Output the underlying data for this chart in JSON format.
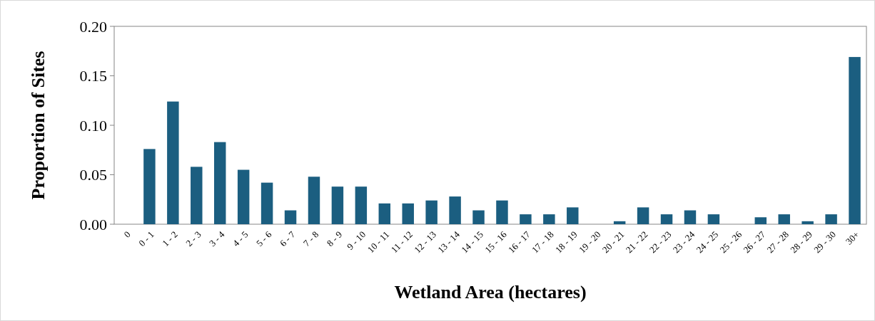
{
  "chart_data": {
    "type": "bar",
    "xlabel": "Wetland Area (hectares)",
    "ylabel": "Proportion of Sites",
    "categories": [
      "0",
      "0 - 1",
      "1 - 2",
      "2 - 3",
      "3 - 4",
      "4 - 5",
      "5 - 6",
      "6 - 7",
      "7 - 8",
      "8 - 9",
      "9 - 10",
      "10 - 11",
      "11 - 12",
      "12 - 13",
      "13 - 14",
      "14 - 15",
      "15 - 16",
      "16 - 17",
      "17 - 18",
      "18 - 19",
      "19 - 20",
      "20 - 21",
      "21 - 22",
      "22 - 23",
      "23 - 24",
      "24 - 25",
      "25 - 26",
      "26 - 27",
      "27 - 28",
      "28 - 29",
      "29 - 30",
      "30+"
    ],
    "values": [
      0,
      0.076,
      0.124,
      0.058,
      0.083,
      0.055,
      0.042,
      0.014,
      0.048,
      0.038,
      0.038,
      0.021,
      0.021,
      0.024,
      0.028,
      0.014,
      0.024,
      0.01,
      0.01,
      0.017,
      0,
      0.003,
      0.017,
      0.01,
      0.014,
      0.01,
      0,
      0.007,
      0.01,
      0.003,
      0.01,
      0.169
    ],
    "color": "#1b5e80",
    "ylim": [
      0,
      0.2
    ],
    "yticks": [
      {
        "value": 0,
        "label": "0.00"
      },
      {
        "value": 0.05,
        "label": "0.05"
      },
      {
        "value": 0.1,
        "label": "0.10"
      },
      {
        "value": 0.15,
        "label": "0.15"
      },
      {
        "value": 0.2,
        "label": "0.20"
      }
    ],
    "grid": false
  }
}
